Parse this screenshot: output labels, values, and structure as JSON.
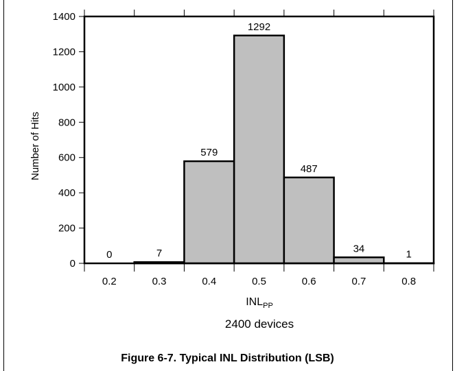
{
  "chart_data": {
    "type": "bar",
    "categories": [
      "0.2",
      "0.3",
      "0.4",
      "0.5",
      "0.6",
      "0.7",
      "0.8"
    ],
    "values": [
      0,
      7,
      579,
      1292,
      487,
      34,
      1
    ],
    "data_labels": [
      "0",
      "7",
      "579",
      "1292",
      "487",
      "34",
      "1"
    ],
    "xlabel_main": "INL",
    "xlabel_sub": "PP",
    "subtitle": "2400 devices",
    "ylabel": "Number of Hits",
    "ylim": [
      0,
      1400
    ],
    "yticks": [
      0,
      200,
      400,
      600,
      800,
      1000,
      1200,
      1400
    ],
    "bar_color": "#bfbfbf",
    "grid": false
  },
  "caption": "Figure 6-7. Typical INL Distribution (LSB)"
}
